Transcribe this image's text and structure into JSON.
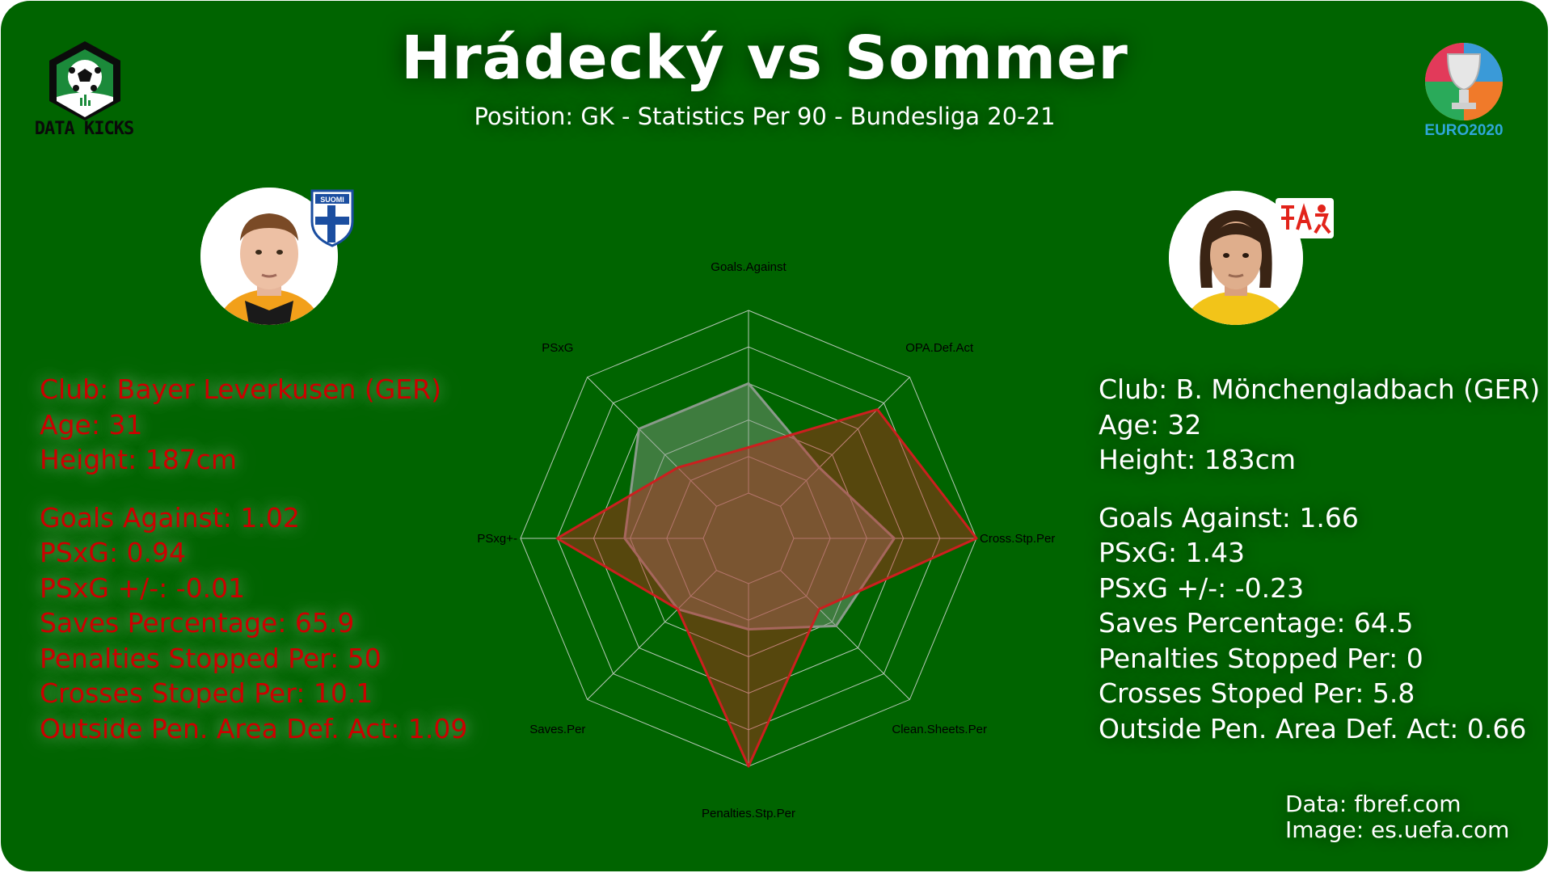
{
  "header": {
    "title": "Hrádecký vs Sommer",
    "subtitle": "Position: GK  - Statistics Per 90 - Bundesliga 20-21"
  },
  "branding": {
    "left_logo_text": "DATA KICKS",
    "left_logo_icon": "soccer-ball-hexagon-icon",
    "right_logo_text": "EURO2020",
    "right_logo_icon": "euro2020-trophy-icon"
  },
  "players": {
    "left": {
      "flag_icon": "finland-suomi-flag-icon",
      "flag_text": "SUOMI",
      "club": "Club: Bayer Leverkusen (GER)",
      "age": "Age: 31",
      "height": "Height: 187cm",
      "goals_against": "Goals Against: 1.02",
      "psxg": "PSxG: 0.94",
      "psxg_pm": "PSxG +/-: -0.01",
      "saves_pct": "Saves Percentage: 65.9",
      "pens_stopped": "Penalties Stopped Per: 50",
      "crosses_stopped": "Crosses Stoped Per: 10.1",
      "opa": "Outside Pen. Area Def. Act: 1.09"
    },
    "right": {
      "flag_icon": "switzerland-football-association-flag-icon",
      "club": "Club: B. Mönchengladbach (GER)",
      "age": "Age: 32",
      "height": "Height: 183cm",
      "goals_against": "Goals Against: 1.66",
      "psxg": "PSxG: 1.43",
      "psxg_pm": "PSxG +/-: -0.23",
      "saves_pct": "Saves Percentage: 64.5",
      "pens_stopped": "Penalties Stopped Per: 0",
      "crosses_stopped": "Crosses Stoped Per: 5.8",
      "opa": "Outside Pen. Area Def. Act: 0.66"
    }
  },
  "source": {
    "data": "Data: fbref.com",
    "image": "Image: es.uefa.com"
  },
  "colors": {
    "background": "#006400",
    "hradecky": "#cc1f1f",
    "sommer": "#8a9a8a",
    "grid": "#b8c8b8"
  },
  "chart_data": {
    "type": "radar",
    "axes": [
      "Goals.Against",
      "OPA.Def.Act",
      "Cross.Stp.Per",
      "Clean.Sheets.Per",
      "Penalties.Stp.Per",
      "Saves.Per",
      "PSxg+-",
      "PSxG"
    ],
    "rlim": [
      0,
      1
    ],
    "rings": 5,
    "grid": true,
    "series": [
      {
        "values": [
          0.25,
          0.75,
          1.0,
          0.3,
          1.0,
          0.3,
          0.8,
          0.3
        ],
        "color": "#cc1f1f"
      },
      {
        "values": [
          0.6,
          0.3,
          0.55,
          0.43,
          0.25,
          0.3,
          0.43,
          0.6
        ],
        "color": "#8a9a8a"
      }
    ]
  }
}
